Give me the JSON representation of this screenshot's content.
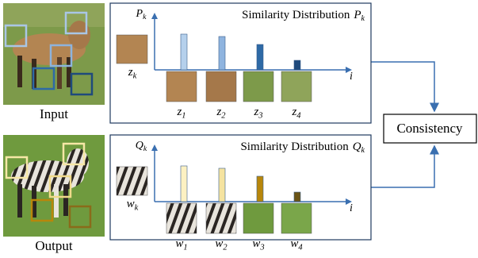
{
  "input": {
    "label": "Input"
  },
  "output": {
    "label": "Output"
  },
  "consistency": {
    "label": "Consistency"
  },
  "panels": [
    {
      "title": "Similarity Distribution",
      "symbol": "P",
      "sub": "k",
      "x_label": "i",
      "anchor": {
        "base": "z",
        "sub": "k"
      },
      "patches": [
        {
          "base": "z",
          "sub": "1"
        },
        {
          "base": "z",
          "sub": "2"
        },
        {
          "base": "z",
          "sub": "3"
        },
        {
          "base": "z",
          "sub": "4"
        }
      ]
    },
    {
      "title": "Similarity Distribution",
      "symbol": "Q",
      "sub": "k",
      "x_label": "i",
      "anchor": {
        "base": "w",
        "sub": "k"
      },
      "patches": [
        {
          "base": "w",
          "sub": "1"
        },
        {
          "base": "w",
          "sub": "2"
        },
        {
          "base": "w",
          "sub": "3"
        },
        {
          "base": "w",
          "sub": "4"
        }
      ]
    }
  ]
}
